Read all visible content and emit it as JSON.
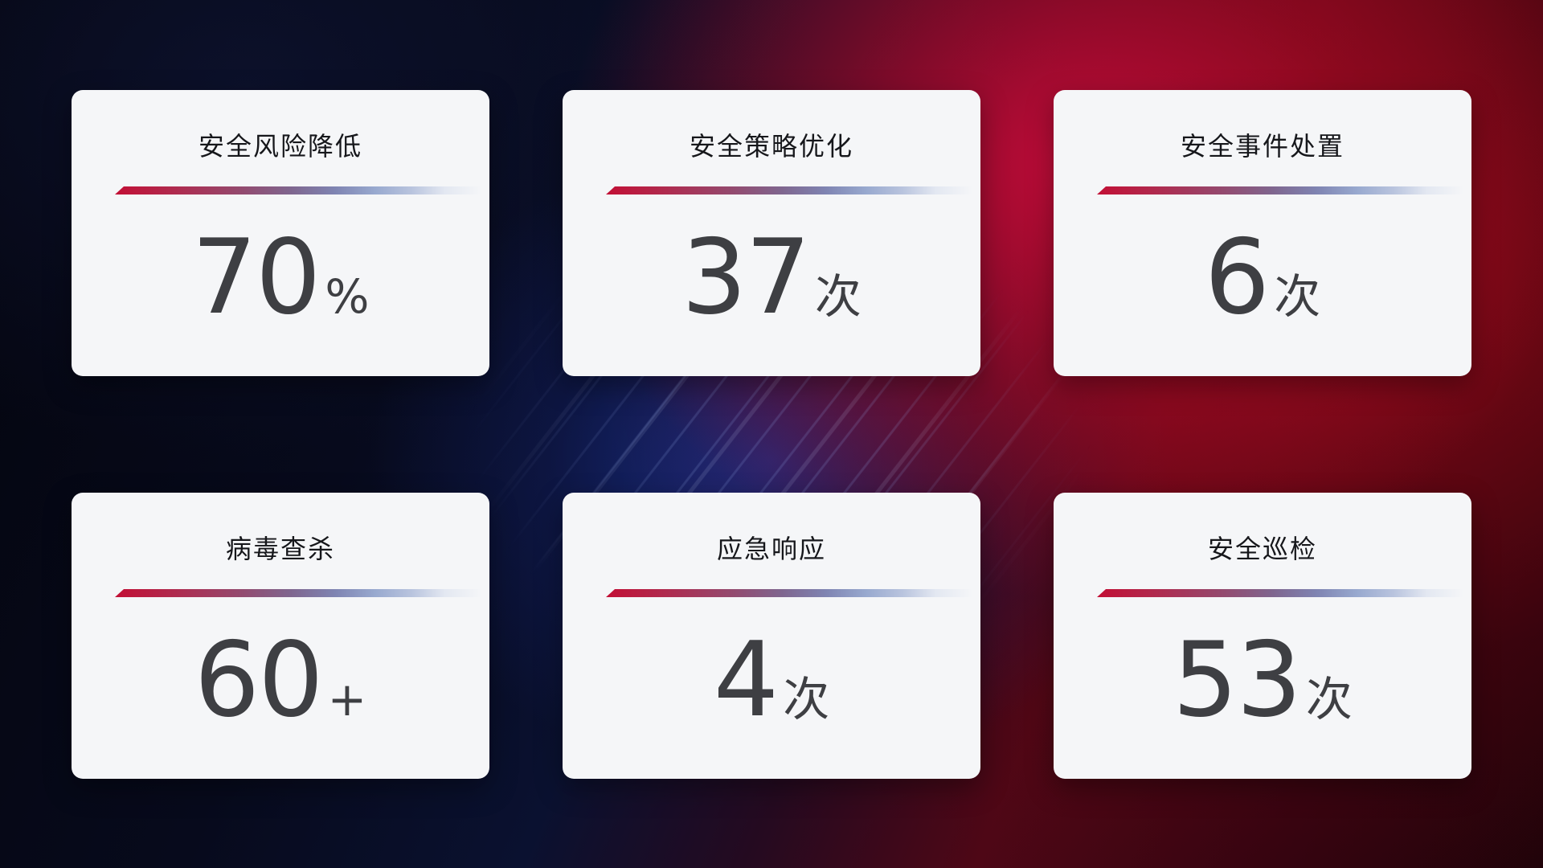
{
  "cards": [
    {
      "title": "安全风险降低",
      "value": "70",
      "unit": "%"
    },
    {
      "title": "安全策略优化",
      "value": "37",
      "unit": "次"
    },
    {
      "title": "安全事件处置",
      "value": "6",
      "unit": "次"
    },
    {
      "title": "病毒查杀",
      "value": "60",
      "unit": "+"
    },
    {
      "title": "应急响应",
      "value": "4",
      "unit": "次"
    },
    {
      "title": "安全巡检",
      "value": "53",
      "unit": "次"
    }
  ],
  "colors": {
    "card_background": "#f5f6f8",
    "title_text": "#16171b",
    "value_text": "#3e3f43",
    "divider_red": "#c20f35",
    "divider_blue": "#b9c4de",
    "background_navy": "#0a1130",
    "background_blue_beam": "#1e3294",
    "background_crimson": "#c90c3c",
    "background_maroon": "#4e0716"
  }
}
